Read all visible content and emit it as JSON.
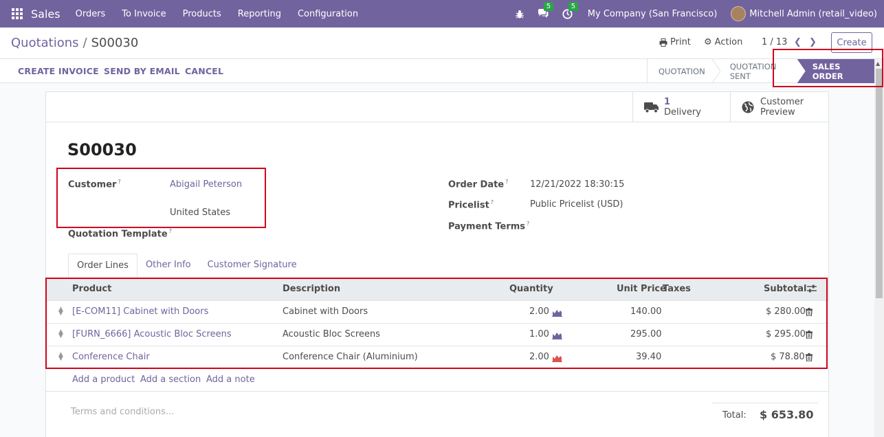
{
  "navbar": {
    "app_name": "Sales",
    "menu": [
      "Orders",
      "To Invoice",
      "Products",
      "Reporting",
      "Configuration"
    ],
    "messages_count": "5",
    "activities_count": "5",
    "company": "My Company (San Francisco)",
    "user": "Mitchell Admin (retail_video)",
    "color": "#71639e"
  },
  "control": {
    "breadcrumb_parent": "Quotations",
    "breadcrumb_sep": "/",
    "breadcrumb_current": "S00030",
    "print_label": "Print",
    "action_label": "Action",
    "pager": "1 / 13",
    "create_label": "Create"
  },
  "statusbar": {
    "buttons": [
      "CREATE INVOICE",
      "SEND BY EMAIL",
      "CANCEL"
    ],
    "stages": [
      "QUOTATION",
      "QUOTATION SENT",
      "SALES ORDER"
    ],
    "active_stage": "SALES ORDER"
  },
  "smart_buttons": {
    "delivery_count": "1",
    "delivery_label": "Delivery",
    "preview_line1": "Customer",
    "preview_line2": "Preview"
  },
  "form": {
    "title": "S00030",
    "customer_label": "Customer",
    "customer_name": "Abigail Peterson",
    "customer_country": "United States",
    "quotation_template_label": "Quotation Template",
    "order_date_label": "Order Date",
    "order_date": "12/21/2022 18:30:15",
    "pricelist_label": "Pricelist",
    "pricelist": "Public Pricelist (USD)",
    "payment_terms_label": "Payment Terms",
    "help_mark": "?"
  },
  "tabs": [
    "Order Lines",
    "Other Info",
    "Customer Signature"
  ],
  "table": {
    "headers": {
      "product": "Product",
      "description": "Description",
      "quantity": "Quantity",
      "unit_price": "Unit Price",
      "taxes": "Taxes",
      "subtotal": "Subtotal"
    },
    "rows": [
      {
        "product": "[E-COM11] Cabinet with Doors",
        "description": "Cabinet with Doors",
        "quantity": "2.00",
        "unit_price": "140.00",
        "subtotal": "$ 280.00",
        "forecast_color": "#71639e"
      },
      {
        "product": "[FURN_6666] Acoustic Bloc Screens",
        "description": "Acoustic Bloc Screens",
        "quantity": "1.00",
        "unit_price": "295.00",
        "subtotal": "$ 295.00",
        "forecast_color": "#71639e"
      },
      {
        "product": "Conference Chair",
        "description": "Conference Chair (Aluminium)",
        "quantity": "2.00",
        "unit_price": "39.40",
        "subtotal": "$ 78.80",
        "forecast_color": "#d9534f"
      }
    ],
    "add_product": "Add a product",
    "add_section": "Add a section",
    "add_note": "Add a note"
  },
  "footer": {
    "terms_placeholder": "Terms and conditions...",
    "total_label": "Total:",
    "total_value": "$ 653.80"
  }
}
